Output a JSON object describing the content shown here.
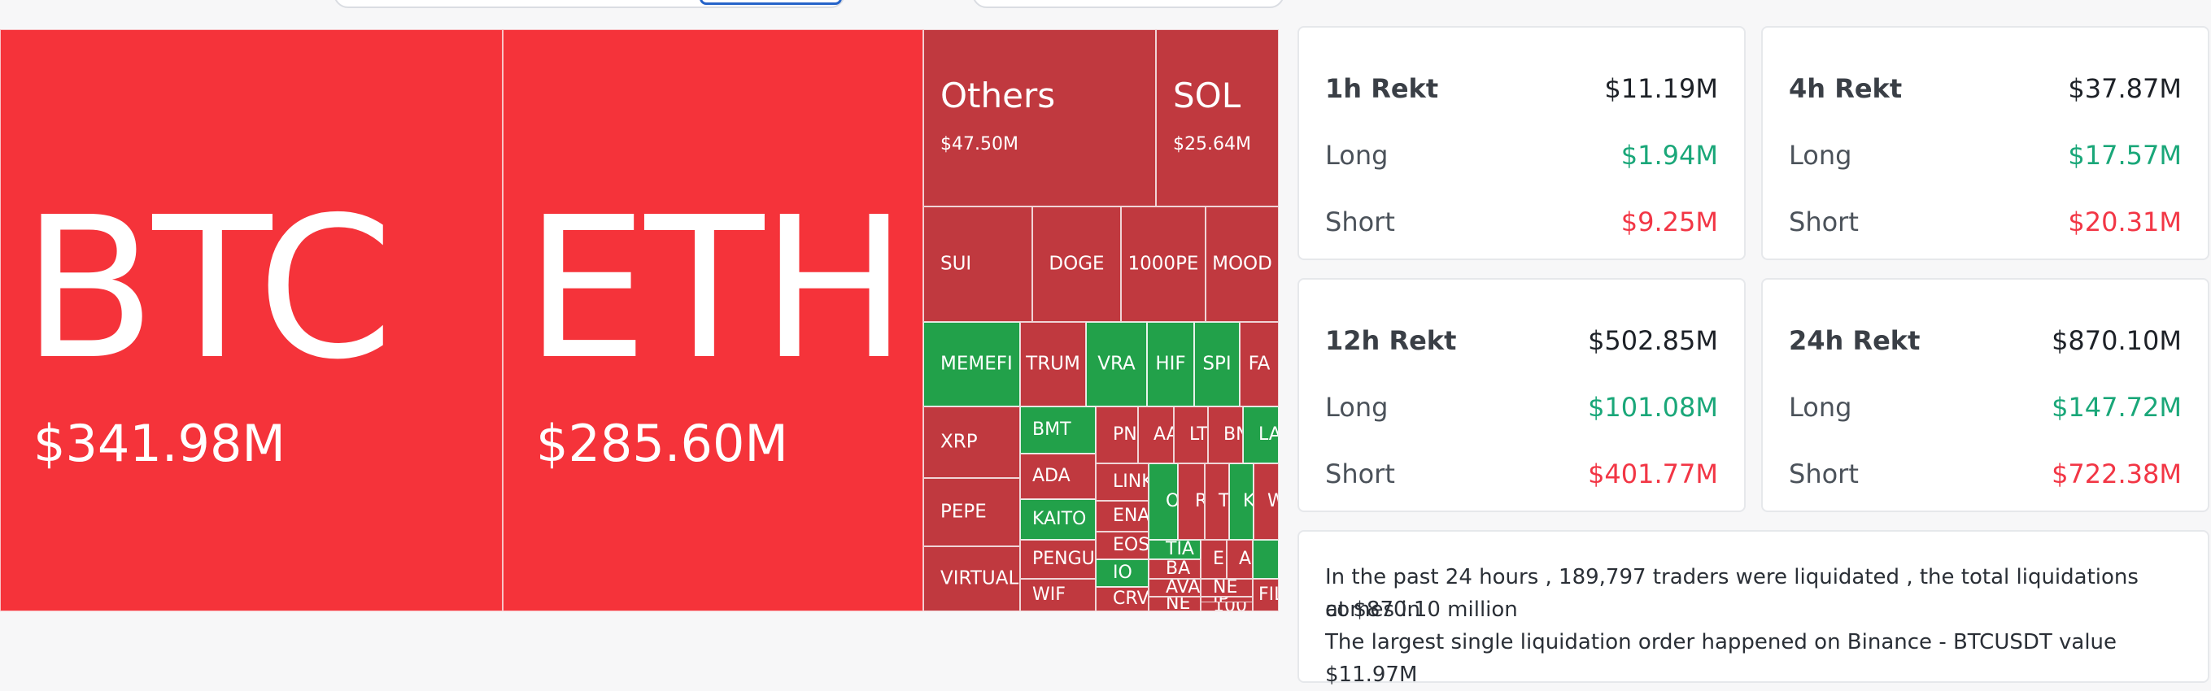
{
  "treemap": {
    "tiles": [
      {
        "symbol": "BTC",
        "value": "$341.98M"
      },
      {
        "symbol": "ETH",
        "value": "$285.60M"
      },
      {
        "symbol": "Others",
        "value": "$47.50M"
      },
      {
        "symbol": "SOL",
        "value": "$25.64M"
      },
      {
        "symbol": "SUI"
      },
      {
        "symbol": "DOGE"
      },
      {
        "symbol": "1000PE"
      },
      {
        "symbol": "MOOD"
      },
      {
        "symbol": "MEMEFI"
      },
      {
        "symbol": "TRUM"
      },
      {
        "symbol": "VRA"
      },
      {
        "symbol": "HIF"
      },
      {
        "symbol": "SPI"
      },
      {
        "symbol": "FA"
      },
      {
        "symbol": "XRP"
      },
      {
        "symbol": "PEPE"
      },
      {
        "symbol": "VIRTUAL"
      },
      {
        "symbol": "BMT"
      },
      {
        "symbol": "ADA"
      },
      {
        "symbol": "KAITO"
      },
      {
        "symbol": "PENGU"
      },
      {
        "symbol": "WIF"
      },
      {
        "symbol": "PN"
      },
      {
        "symbol": "AA"
      },
      {
        "symbol": "LT"
      },
      {
        "symbol": "BN"
      },
      {
        "symbol": "LA"
      },
      {
        "symbol": "LINK"
      },
      {
        "symbol": "ENA"
      },
      {
        "symbol": "EOS"
      },
      {
        "symbol": "IO"
      },
      {
        "symbol": "CRV"
      },
      {
        "symbol": "O"
      },
      {
        "symbol": "R"
      },
      {
        "symbol": "T"
      },
      {
        "symbol": "K"
      },
      {
        "symbol": "W"
      },
      {
        "symbol": "TIA"
      },
      {
        "symbol": "BA"
      },
      {
        "symbol": "AVA"
      },
      {
        "symbol": "NE"
      },
      {
        "symbol": "E"
      },
      {
        "symbol": "A"
      },
      {
        "symbol": "NE"
      },
      {
        "symbol": "IP"
      },
      {
        "symbol": "100"
      },
      {
        "symbol": "FIL"
      }
    ]
  },
  "stats": [
    {
      "title": "1h Rekt",
      "total": "$11.19M",
      "long_label": "Long",
      "long": "$1.94M",
      "short_label": "Short",
      "short": "$9.25M"
    },
    {
      "title": "4h Rekt",
      "total": "$37.87M",
      "long_label": "Long",
      "long": "$17.57M",
      "short_label": "Short",
      "short": "$20.31M"
    },
    {
      "title": "12h Rekt",
      "total": "$502.85M",
      "long_label": "Long",
      "long": "$101.08M",
      "short_label": "Short",
      "short": "$401.77M"
    },
    {
      "title": "24h Rekt",
      "total": "$870.10M",
      "long_label": "Long",
      "long": "$147.72M",
      "short_label": "Short",
      "short": "$722.38M"
    }
  ],
  "summary": {
    "line1": "In the past 24 hours , 189,797 traders were liquidated , the total liquidations comes in",
    "line2": "at $870.10 million",
    "line3": "The largest single liquidation order happened on Binance - BTCUSDT value $11.97M"
  },
  "colors": {
    "long": "#1aa779",
    "short": "#f23645",
    "tile_big": "#f5333a",
    "tile_down": "#c0393f",
    "tile_up": "#22a14a"
  }
}
